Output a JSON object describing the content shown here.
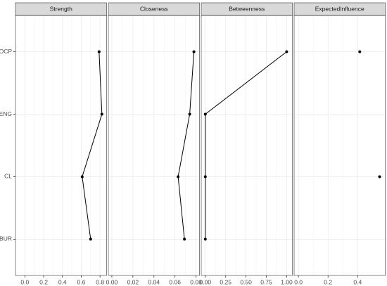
{
  "chart_data": {
    "type": "line",
    "grid": true,
    "color": "#000000",
    "categories": [
      "OCP",
      "ENG",
      "CL",
      "BUR"
    ],
    "panels": [
      {
        "title": "Strength",
        "values": [
          0.79,
          0.82,
          0.61,
          0.7
        ],
        "xlim": [
          -0.1,
          0.87
        ],
        "xticks": [
          {
            "value": 0,
            "label": "0.0"
          },
          0.2,
          0.4,
          0.6,
          0.8
        ]
      },
      {
        "title": "Closeness",
        "values": [
          0.078,
          0.074,
          0.063,
          0.069
        ],
        "xlim": [
          -0.0033,
          0.0833
        ],
        "xticks": [
          {
            "value": 0,
            "label": "0.00"
          },
          0.02,
          0.04,
          0.06,
          0.08
        ]
      },
      {
        "title": "Betweenness",
        "values": [
          1,
          0,
          0,
          0
        ],
        "xlim": [
          -0.05,
          1.07
        ],
        "xticks": [
          {
            "value": 0,
            "label": "0.00"
          },
          0.25,
          {
            "value": 0.5,
            "label": "0.50"
          },
          0.75,
          {
            "value": 1,
            "label": "1.00"
          }
        ]
      },
      {
        "title": "ExpectedInfluence",
        "values": [
          0.414,
          null,
          0.548,
          null
        ],
        "xlim": [
          -0.029,
          0.586
        ],
        "xticks": [
          {
            "value": 0,
            "label": "0.0"
          },
          0.2,
          0.4
        ]
      }
    ]
  }
}
